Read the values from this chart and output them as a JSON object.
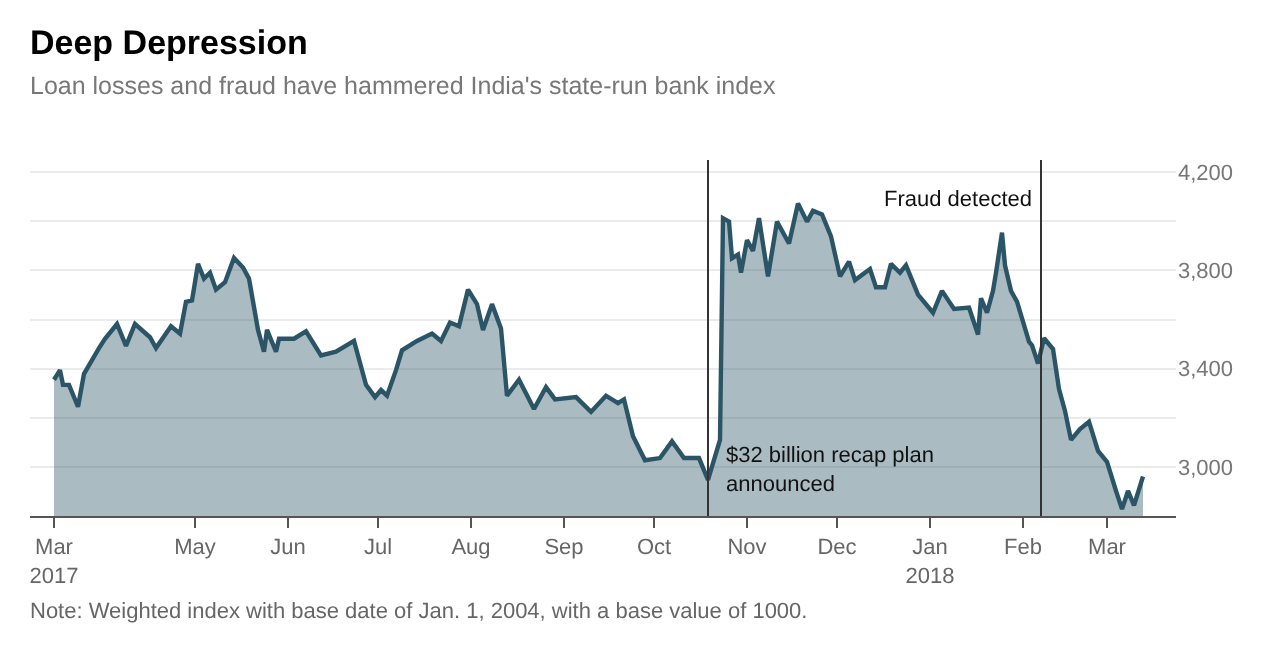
{
  "chart_data": {
    "type": "area",
    "title": "Deep Depression",
    "subtitle": "Loan losses and fraud have hammered India's state-run bank index",
    "x": [
      "2017-03-15",
      "2017-03-17",
      "2017-03-18",
      "2017-03-20",
      "2017-03-23",
      "2017-03-25",
      "2017-03-30",
      "2017-04-01",
      "2017-04-05",
      "2017-04-08",
      "2017-04-11",
      "2017-04-16",
      "2017-04-18",
      "2017-04-23",
      "2017-04-26",
      "2017-04-28",
      "2017-04-30",
      "2017-05-02",
      "2017-05-04",
      "2017-05-06",
      "2017-05-08",
      "2017-05-11",
      "2017-05-14",
      "2017-05-17",
      "2017-05-19",
      "2017-05-22",
      "2017-05-24",
      "2017-05-25",
      "2017-05-28",
      "2017-05-29",
      "2017-06-03",
      "2017-06-07",
      "2017-06-12",
      "2017-06-17",
      "2017-06-23",
      "2017-06-27",
      "2017-06-30",
      "2017-07-02",
      "2017-07-04",
      "2017-07-07",
      "2017-07-09",
      "2017-07-14",
      "2017-07-19",
      "2017-07-22",
      "2017-07-25",
      "2017-07-28",
      "2017-07-31",
      "2017-08-03",
      "2017-08-05",
      "2017-08-08",
      "2017-08-11",
      "2017-08-13",
      "2017-08-17",
      "2017-08-22",
      "2017-08-26",
      "2017-08-29",
      "2017-09-05",
      "2017-09-10",
      "2017-09-15",
      "2017-09-19",
      "2017-09-21",
      "2017-09-24",
      "2017-09-28",
      "2017-10-03",
      "2017-10-07",
      "2017-10-11",
      "2017-10-16",
      "2017-10-19",
      "2017-10-23",
      "2017-10-24",
      "2017-10-26",
      "2017-10-27",
      "2017-10-29",
      "2017-10-30",
      "2017-11-01",
      "2017-11-03",
      "2017-11-05",
      "2017-11-08",
      "2017-11-11",
      "2017-11-15",
      "2017-11-18",
      "2017-11-21",
      "2017-11-23",
      "2017-11-26",
      "2017-11-29",
      "2017-12-02",
      "2017-12-05",
      "2017-12-07",
      "2017-12-12",
      "2017-12-14",
      "2017-12-17",
      "2017-12-19",
      "2017-12-22",
      "2017-12-24",
      "2017-12-28",
      "2018-01-02",
      "2018-01-05",
      "2018-01-09",
      "2018-01-14",
      "2018-01-17",
      "2018-01-18",
      "2018-01-20",
      "2018-01-22",
      "2018-01-23",
      "2018-01-25",
      "2018-01-26",
      "2018-01-28",
      "2018-01-30",
      "2018-02-03",
      "2018-02-04",
      "2018-02-06",
      "2018-02-08",
      "2018-02-11",
      "2018-02-13",
      "2018-02-15",
      "2018-02-17",
      "2018-02-20",
      "2018-02-23",
      "2018-02-26",
      "2018-03-01",
      "2018-03-04",
      "2018-03-06",
      "2018-03-08",
      "2018-03-10",
      "2018-03-13"
    ],
    "series": [
      {
        "color": "#2b5566",
        "values": [
          3355,
          3394,
          3334,
          3334,
          3245,
          3379,
          3484,
          3522,
          3582,
          3493,
          3582,
          3528,
          3484,
          3573,
          3543,
          3672,
          3678,
          3827,
          3767,
          3791,
          3722,
          3752,
          3851,
          3812,
          3767,
          3558,
          3469,
          3558,
          3469,
          3522,
          3522,
          3552,
          3454,
          3469,
          3513,
          3334,
          3284,
          3313,
          3290,
          3394,
          3475,
          3513,
          3543,
          3513,
          3588,
          3573,
          3722,
          3663,
          3558,
          3663,
          3564,
          3290,
          3355,
          3236,
          3325,
          3275,
          3284,
          3224,
          3290,
          3260,
          3275,
          3125,
          3027,
          3036,
          3104,
          3036,
          3036,
          2947,
          3110,
          4013,
          3999,
          3850,
          3865,
          3791,
          3924,
          3880,
          4013,
          3776,
          3999,
          3910,
          4073,
          3999,
          4043,
          4028,
          3939,
          3776,
          3836,
          3761,
          3806,
          3732,
          3732,
          3827,
          3791,
          3821,
          3702,
          3628,
          3717,
          3643,
          3649,
          3539,
          3687,
          3628,
          3717,
          3791,
          3954,
          3821,
          3717,
          3673,
          3510,
          3495,
          3421,
          3524,
          3480,
          3317,
          3228,
          3110,
          3154,
          3184,
          3065,
          3021,
          2902,
          2828,
          2902,
          2843,
          2961
        ]
      }
    ],
    "xlim": [
      "2017-03-07",
      "2018-03-24"
    ],
    "xticks": [
      {
        "value": "2017-03-15",
        "label": "Mar\n2017"
      },
      {
        "value": "2017-05-01",
        "label": "May"
      },
      {
        "value": "2017-06-01",
        "label": "Jun"
      },
      {
        "value": "2017-07-01",
        "label": "Jul"
      },
      {
        "value": "2017-08-01",
        "label": "Aug"
      },
      {
        "value": "2017-09-01",
        "label": "Sep"
      },
      {
        "value": "2017-10-01",
        "label": "Oct"
      },
      {
        "value": "2017-11-01",
        "label": "Nov"
      },
      {
        "value": "2017-12-01",
        "label": "Dec"
      },
      {
        "value": "2018-01-01",
        "label": "Jan\n2018"
      },
      {
        "value": "2018-02-01",
        "label": "Feb"
      },
      {
        "value": "2018-03-01",
        "label": "Mar"
      }
    ],
    "ylim": [
      2800,
      4250
    ],
    "yticks": [
      {
        "value": 3000,
        "label": "3,000"
      },
      {
        "value": 3200,
        "label": null
      },
      {
        "value": 3400,
        "label": "3,400"
      },
      {
        "value": 3600,
        "label": null
      },
      {
        "value": 3800,
        "label": "3,800"
      },
      {
        "value": 4000,
        "label": null
      },
      {
        "value": 4200,
        "label": "4,200"
      }
    ],
    "grid": "y",
    "ref_lines": [
      {
        "axis": "x",
        "value": "2017-10-19",
        "label": "$32 billion recap plan\nannounced",
        "color": "#333333"
      },
      {
        "axis": "x",
        "value": "2018-02-07",
        "label": "Fraud detected",
        "color": "#333333"
      }
    ],
    "annotations": [
      "Note: Weighted index with base date of Jan. 1, 2004, with a base value of 1000."
    ]
  }
}
